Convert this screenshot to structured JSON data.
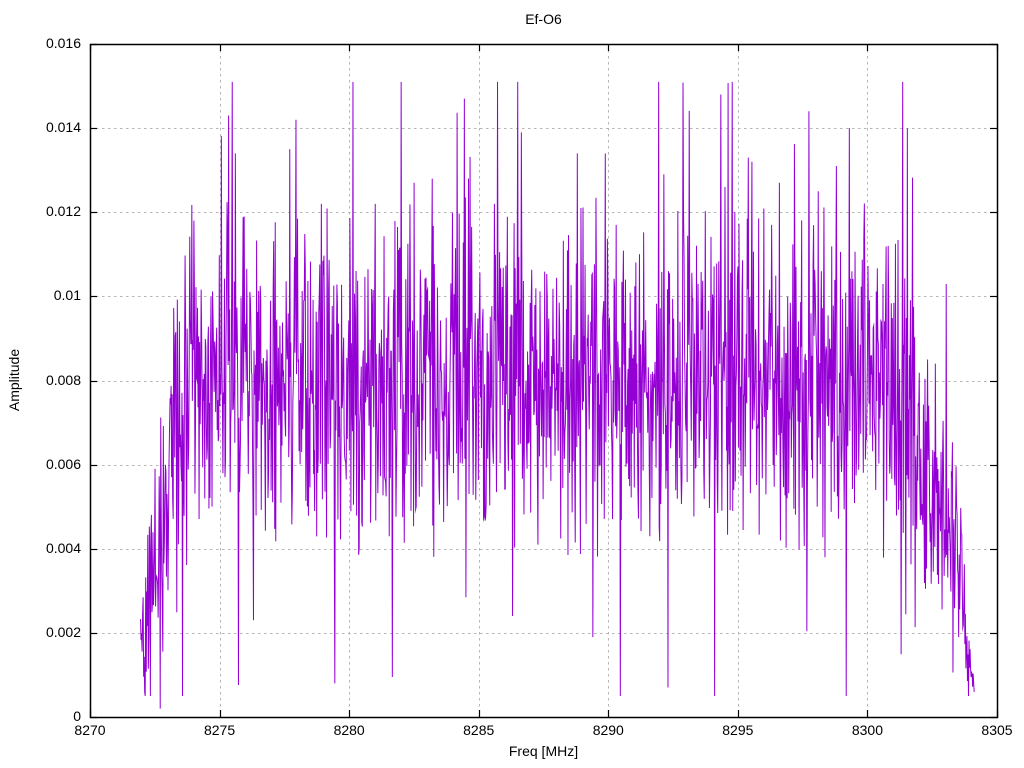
{
  "chart_data": {
    "type": "line",
    "title": "Ef-O6",
    "xlabel": "Freq [MHz]",
    "ylabel": "Amplitude",
    "xlim": [
      8270,
      8305
    ],
    "ylim": [
      0,
      0.016
    ],
    "grid": true,
    "legend": "none",
    "line_color": "#9400d3",
    "grid_color": "#b5b5b5",
    "axis_color": "#000000",
    "xticks": [
      {
        "value": 8270,
        "label": "8270"
      },
      {
        "value": 8275,
        "label": "8275"
      },
      {
        "value": 8280,
        "label": "8280"
      },
      {
        "value": 8285,
        "label": "8285"
      },
      {
        "value": 8290,
        "label": "8290"
      },
      {
        "value": 8295,
        "label": "8295"
      },
      {
        "value": 8300,
        "label": "8300"
      },
      {
        "value": 8305,
        "label": "8305"
      }
    ],
    "yticks": [
      {
        "value": 0,
        "label": "0"
      },
      {
        "value": 0.002,
        "label": "0.002"
      },
      {
        "value": 0.004,
        "label": "0.004"
      },
      {
        "value": 0.006,
        "label": "0.006"
      },
      {
        "value": 0.008,
        "label": "0.008"
      },
      {
        "value": 0.01,
        "label": "0.01"
      },
      {
        "value": 0.012,
        "label": "0.012"
      },
      {
        "value": 0.014,
        "label": "0.014"
      },
      {
        "value": 0.016,
        "label": "0.016"
      }
    ],
    "series": {
      "name": "Ef-O6",
      "f_start": 8271.95,
      "f_end": 8304.12,
      "n_points": 1610,
      "seed": 42,
      "clamp": [
        0.0005,
        0.0151
      ],
      "envelope": [
        [
          8271.95,
          0.0022,
          0.0016
        ],
        [
          8272.5,
          0.003,
          0.002
        ],
        [
          8273.0,
          0.0055,
          0.0028
        ],
        [
          8273.6,
          0.0075,
          0.003
        ],
        [
          8274.2,
          0.008,
          0.0028
        ],
        [
          8300.5,
          0.008,
          0.0028
        ],
        [
          8301.5,
          0.0072,
          0.0026
        ],
        [
          8302.3,
          0.006,
          0.0022
        ],
        [
          8303.0,
          0.0046,
          0.0018
        ],
        [
          8303.6,
          0.0035,
          0.0014
        ],
        [
          8303.95,
          0.0012,
          0.0006
        ],
        [
          8304.12,
          0.0006,
          0.0002
        ]
      ],
      "peaks": [
        [
          8274.0,
          0.0118
        ],
        [
          8275.35,
          0.0143
        ],
        [
          8275.6,
          0.0134
        ],
        [
          8277.7,
          0.0135
        ],
        [
          8277.95,
          0.0142
        ],
        [
          8281.0,
          0.0122
        ],
        [
          8282.5,
          0.0127
        ],
        [
          8283.2,
          0.0128
        ],
        [
          8284.45,
          0.0147
        ],
        [
          8284.6,
          0.0128
        ],
        [
          8285.6,
          0.0122
        ],
        [
          8286.65,
          0.0139
        ],
        [
          8288.8,
          0.0134
        ],
        [
          8288.95,
          0.0121
        ],
        [
          8290.3,
          0.0117
        ],
        [
          8292.15,
          0.0129
        ],
        [
          8294.35,
          0.0148
        ],
        [
          8294.5,
          0.0126
        ],
        [
          8295.4,
          0.0133
        ],
        [
          8295.55,
          0.0132
        ],
        [
          8296.3,
          0.0117
        ],
        [
          8296.6,
          0.0127
        ],
        [
          8297.75,
          0.0144
        ],
        [
          8298.1,
          0.0125
        ],
        [
          8298.8,
          0.0131
        ],
        [
          8299.3,
          0.014
        ],
        [
          8300.8,
          0.0112
        ]
      ],
      "dips": [
        [
          8272.7,
          0.0002
        ],
        [
          8276.3,
          0.0023
        ],
        [
          8279.45,
          0.0008
        ],
        [
          8286.3,
          0.0024
        ],
        [
          8292.3,
          0.0007
        ],
        [
          8303.9,
          0.0005
        ]
      ]
    }
  }
}
